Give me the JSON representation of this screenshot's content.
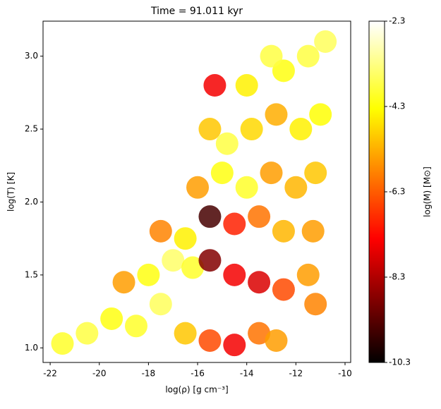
{
  "chart_data": {
    "type": "scatter",
    "title": "Time = 91.011 kyr",
    "x_label": "log(ρ) [g cm⁻³]",
    "y_label": "log(T) [K]",
    "colorbar_label": "log(M) [M⊙]",
    "colormap": "hot",
    "x": [
      -21.5,
      -20.5,
      -19.5,
      -18.5,
      -17.5,
      -16.5,
      -15.5,
      -14.5,
      -13.5,
      -12.8,
      -19,
      -18,
      -17,
      -16.2,
      -15.5,
      -14.5,
      -13.5,
      -12.5,
      -11.5,
      -11.2,
      -17.5,
      -16.5,
      -15.5,
      -14.5,
      -13.5,
      -12.5,
      -11.3,
      -16,
      -15,
      -14,
      -13,
      -12,
      -11.2,
      -15.5,
      -14.8,
      -13.8,
      -12.8,
      -11.8,
      -11,
      -15.3,
      -14,
      -12.5,
      -11.5,
      -10.8,
      -13
    ],
    "y": [
      1.03,
      1.1,
      1.2,
      1.15,
      1.3,
      1.1,
      1.05,
      1.02,
      1.1,
      1.05,
      1.45,
      1.5,
      1.6,
      1.55,
      1.6,
      1.5,
      1.45,
      1.4,
      1.5,
      1.3,
      1.8,
      1.75,
      1.9,
      1.85,
      1.9,
      1.8,
      1.8,
      2.1,
      2.2,
      2.1,
      2.2,
      2.1,
      2.2,
      2.5,
      2.4,
      2.5,
      2.6,
      2.5,
      2.6,
      2.8,
      2.8,
      2.9,
      3.0,
      3.1,
      3.0
    ],
    "c": [
      -4.0,
      -3.8,
      -4.2,
      -4.0,
      -3.6,
      -5.0,
      -6.5,
      -7.5,
      -6.0,
      -5.5,
      -5.5,
      -4.2,
      -3.5,
      -4.0,
      -8.8,
      -7.5,
      -7.8,
      -6.5,
      -5.5,
      -5.8,
      -5.8,
      -4.5,
      -9.5,
      -7.0,
      -6.0,
      -5.2,
      -5.5,
      -5.5,
      -4.2,
      -4.0,
      -5.5,
      -5.2,
      -5.0,
      -5.0,
      -3.8,
      -4.8,
      -5.3,
      -4.5,
      -4.3,
      -7.5,
      -4.5,
      -4.2,
      -3.8,
      -3.6,
      -3.8
    ],
    "xlim": [
      -22.29,
      -9.77
    ],
    "xticks": [
      -22,
      -20,
      -18,
      -16,
      -14,
      -12,
      -10
    ],
    "ylim": [
      0.9,
      3.24
    ],
    "yticks": [
      1.0,
      1.5,
      2.0,
      2.5,
      3.0
    ],
    "clim": [
      -10.3,
      -2.3
    ],
    "cticks": [
      -10.3,
      -8.3,
      -6.3,
      -4.3,
      -2.3
    ]
  }
}
